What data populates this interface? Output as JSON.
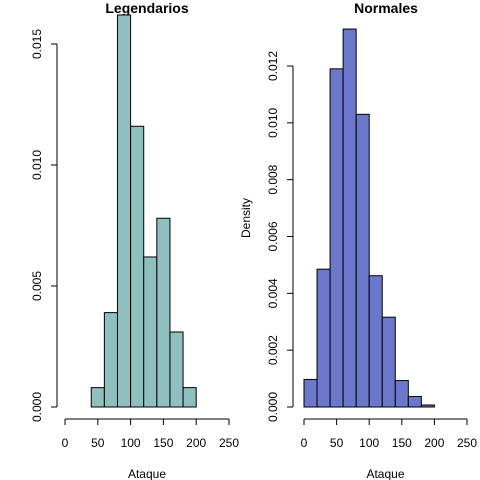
{
  "chart_data": [
    {
      "type": "bar",
      "title": "Legendarios",
      "xlabel": "Ataque",
      "ylabel": "",
      "bar_color": "#8FBFBF",
      "bins": [
        [
          40,
          60
        ],
        [
          60,
          80
        ],
        [
          80,
          100
        ],
        [
          100,
          120
        ],
        [
          120,
          140
        ],
        [
          140,
          160
        ],
        [
          160,
          180
        ],
        [
          180,
          200
        ]
      ],
      "values": [
        0.0008,
        0.0039,
        0.0162,
        0.0116,
        0.0062,
        0.0078,
        0.0031,
        0.0008
      ],
      "xlim": [
        0,
        250
      ],
      "ylim": [
        0,
        0.016
      ],
      "xticks": [
        "0",
        "50",
        "100",
        "150",
        "200",
        "250"
      ],
      "yticks": [
        "0.000",
        "0.005",
        "0.010",
        "0.015"
      ]
    },
    {
      "type": "bar",
      "title": "Normales",
      "xlabel": "Ataque",
      "ylabel": "Density",
      "bar_color": "#6B78CC",
      "bins": [
        [
          0,
          20
        ],
        [
          20,
          40
        ],
        [
          40,
          60
        ],
        [
          60,
          80
        ],
        [
          80,
          100
        ],
        [
          100,
          120
        ],
        [
          120,
          140
        ],
        [
          140,
          160
        ],
        [
          160,
          180
        ],
        [
          180,
          200
        ]
      ],
      "values": [
        0.00097,
        0.00485,
        0.0119,
        0.0133,
        0.0103,
        0.00462,
        0.00316,
        0.00093,
        0.00037,
        7e-05
      ],
      "xlim": [
        0,
        250
      ],
      "ylim": [
        0,
        0.012
      ],
      "xticks": [
        "0",
        "50",
        "100",
        "150",
        "200",
        "250"
      ],
      "yticks": [
        "0.000",
        "0.002",
        "0.004",
        "0.006",
        "0.008",
        "0.010",
        "0.012"
      ]
    }
  ]
}
